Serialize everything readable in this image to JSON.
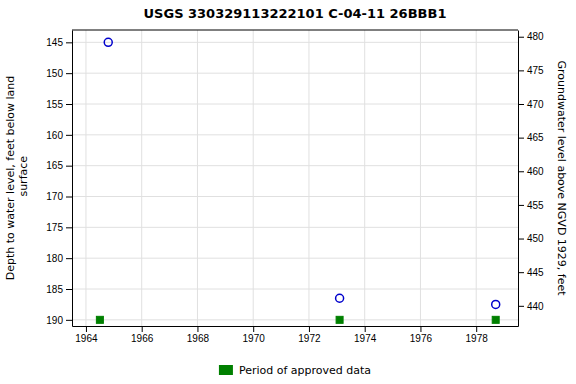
{
  "chart_data": {
    "type": "scatter",
    "title": "USGS 330329113222101 C-04-11 26BBB1",
    "y_label": "Depth to water level, feet below land\n surface",
    "y2_label": "Groundwater level above NGVD 1929, feet",
    "xlim": [
      1963.5,
      1979.5
    ],
    "xticks": [
      1964,
      1966,
      1968,
      1970,
      1972,
      1974,
      1976,
      1978
    ],
    "ylim": [
      191,
      143
    ],
    "yticks": [
      145,
      150,
      155,
      160,
      165,
      170,
      175,
      180,
      185,
      190
    ],
    "y2lim": [
      437,
      481
    ],
    "y2ticks": [
      480,
      475,
      470,
      465,
      460,
      455,
      450,
      445,
      440
    ],
    "grid": true,
    "legend": "bottom",
    "series": [
      {
        "x": [
          1964.8,
          1973.1,
          1978.7
        ],
        "values": [
          145.0,
          186.5,
          187.5
        ],
        "color": "#0000cc",
        "marker": "circle-open"
      },
      {
        "name": "Period of approved data",
        "x": [
          1964.5,
          1973.1,
          1978.7
        ],
        "values": [
          190.0,
          190.0,
          190.0
        ],
        "color": "#008000",
        "marker": "square"
      }
    ]
  }
}
